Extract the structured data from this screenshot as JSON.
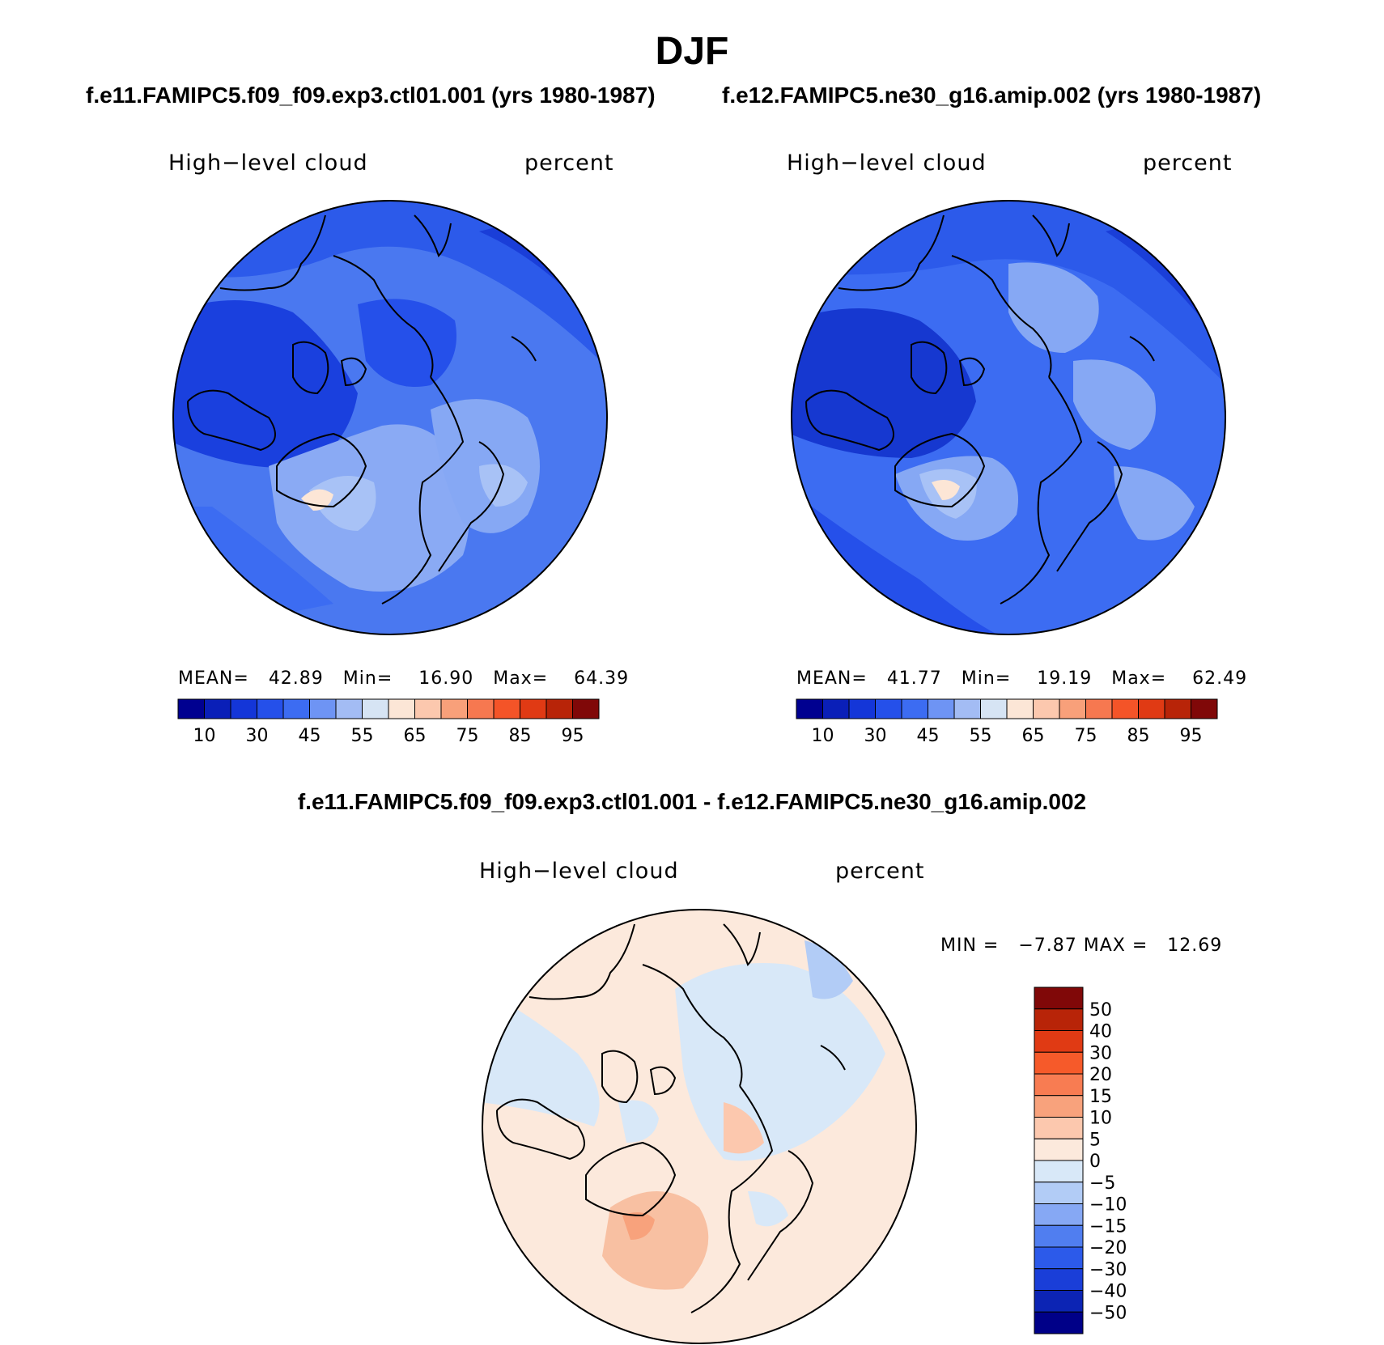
{
  "title": "DJF",
  "panels": [
    {
      "case": "f.e11.FAMIPC5.f09_f09.exp3.ctl01.001 (yrs 1980-1987)",
      "variable": "High−level cloud",
      "units": "percent",
      "stats": {
        "mean_label": "MEAN=",
        "mean": "42.89",
        "min_label": "Min=",
        "min": "16.90",
        "max_label": "Max=",
        "max": "64.39"
      }
    },
    {
      "case": "f.e12.FAMIPC5.ne30_g16.amip.002 (yrs 1980-1987)",
      "variable": "High−level cloud",
      "units": "percent",
      "stats": {
        "mean_label": "MEAN=",
        "mean": "41.77",
        "min_label": "Min=",
        "min": "19.19",
        "max_label": "Max=",
        "max": "62.49"
      }
    }
  ],
  "abs_colorbar": {
    "colors": [
      "#000090",
      "#0a1fb8",
      "#1436d8",
      "#2550ea",
      "#3c6cf2",
      "#6e94f4",
      "#a3bcf4",
      "#d6e4f4",
      "#fce6d6",
      "#fcc8ae",
      "#f8a07a",
      "#f67850",
      "#f45428",
      "#e03a14",
      "#b82408",
      "#800808"
    ],
    "tick_labels": [
      "10",
      "30",
      "45",
      "55",
      "65",
      "75",
      "85",
      "95"
    ]
  },
  "diff_panel": {
    "title": "f.e11.FAMIPC5.f09_f09.exp3.ctl01.001 - f.e12.FAMIPC5.ne30_g16.amip.002",
    "variable": "High−level cloud",
    "units": "percent",
    "stats": {
      "min_label": "MIN =",
      "min": "−7.87",
      "max_label": "MAX =",
      "max": "12.69"
    }
  },
  "diff_colorbar": {
    "colors_top_to_bottom": [
      "#800808",
      "#b82408",
      "#e03a14",
      "#f65a2a",
      "#f87c52",
      "#f8a27c",
      "#fcc8ae",
      "#fce9dc",
      "#d8e8f8",
      "#b2ccf6",
      "#86a8f4",
      "#507ef0",
      "#2c5aea",
      "#1a3ed8",
      "#0c24b4",
      "#000088"
    ],
    "tick_labels": [
      "50",
      "40",
      "30",
      "20",
      "15",
      "10",
      "5",
      "0",
      "−5",
      "−10",
      "−15",
      "−20",
      "−30",
      "−40",
      "−50"
    ]
  },
  "map_colors": {
    "ocean_fill_abs": "#4a78f0",
    "diff_fill": "#fce9dc",
    "coast": "#000000"
  }
}
